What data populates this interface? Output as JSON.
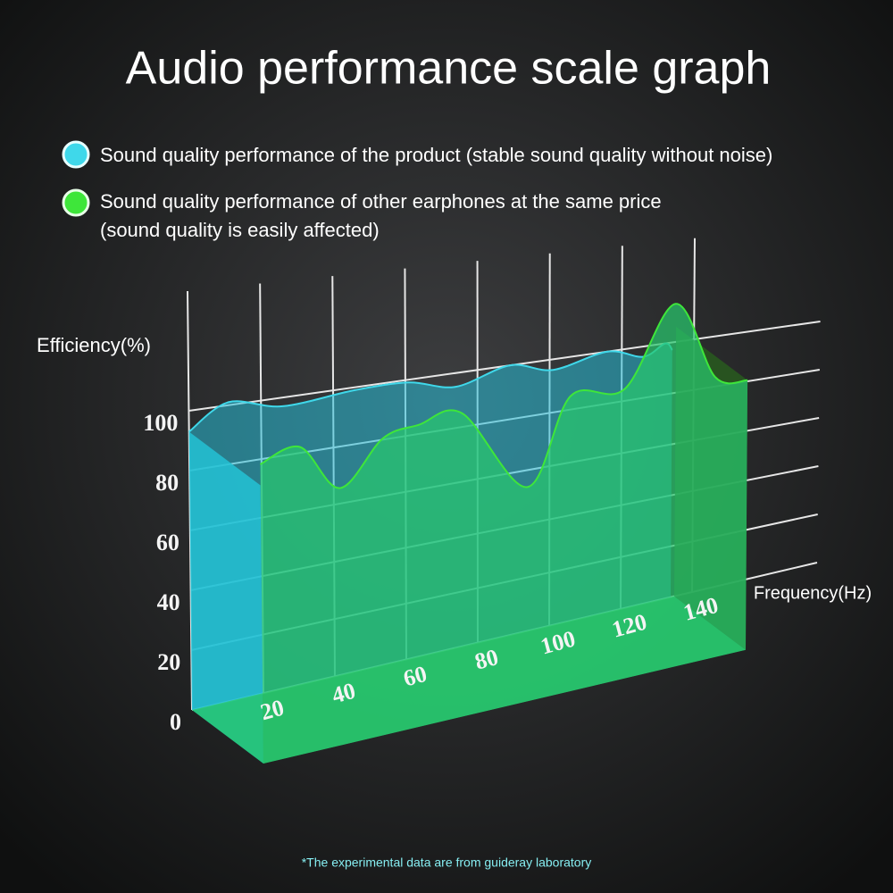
{
  "chart_data": {
    "type": "area3d",
    "title": "Audio performance scale graph",
    "xlabel": "Frequency(Hz)",
    "ylabel": "Efficiency(%)",
    "footnote": "*The experimental data are from guideray laboratory",
    "xlim": [
      0,
      175
    ],
    "xticks": [
      20,
      40,
      60,
      80,
      100,
      120,
      140
    ],
    "ylim": [
      0,
      140
    ],
    "yticks": [
      0,
      20,
      40,
      60,
      80,
      100
    ],
    "grid": true,
    "series": [
      {
        "name": "Sound quality performance of the product (stable sound quality without noise)",
        "color": "#3fd8ea",
        "depth": 0,
        "x": [
          0,
          11,
          26,
          46,
          61,
          74,
          89,
          101,
          116,
          126,
          132,
          134
        ],
        "values": [
          93,
          101,
          97,
          99,
          99,
          95,
          100,
          96,
          100,
          96,
          100,
          97
        ]
      },
      {
        "name": "Sound quality performance of other earphones at the same price",
        "name_note": "(sound quality is easily affected)",
        "color": "#3ee63a",
        "depth": 1,
        "x": [
          0,
          11,
          22,
          34,
          44,
          56,
          74,
          86,
          101,
          115,
          126,
          135
        ],
        "values": [
          100,
          104,
          88,
          103,
          106,
          108,
          78,
          109,
          109,
          139,
          109,
          106
        ]
      }
    ]
  }
}
